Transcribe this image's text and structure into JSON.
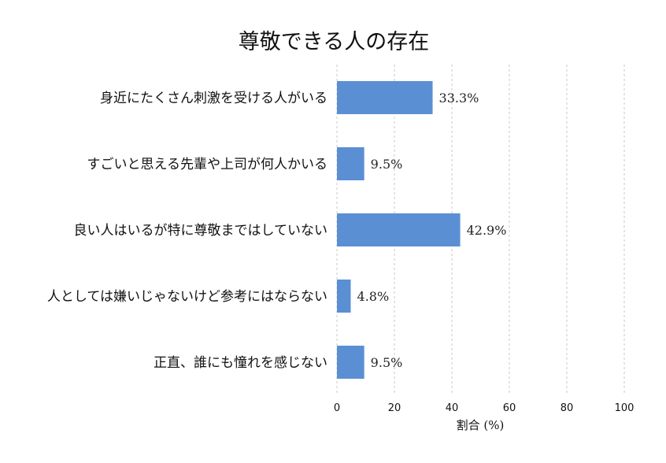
{
  "chart_data": {
    "type": "bar",
    "orientation": "horizontal",
    "title": "尊敬できる人の存在",
    "xlabel": "割合 (%)",
    "ylabel": "",
    "xlim": [
      0,
      100
    ],
    "xticks": [
      "0",
      "20",
      "40",
      "60",
      "80",
      "100"
    ],
    "grid": true,
    "bar_color": "#5b8fd4",
    "categories": [
      "身近にたくさん刺激を受ける人がいる",
      "すごいと思える先輩や上司が何人かいる",
      "良い人はいるが特に尊敬まではしていない",
      "人としては嫌いじゃないけど参考にはならない",
      "正直、誰にも憧れを感じない"
    ],
    "values": [
      33.3,
      9.5,
      42.9,
      4.8,
      9.5
    ],
    "value_labels": [
      "33.3%",
      "9.5%",
      "42.9%",
      "4.8%",
      "9.5%"
    ]
  }
}
